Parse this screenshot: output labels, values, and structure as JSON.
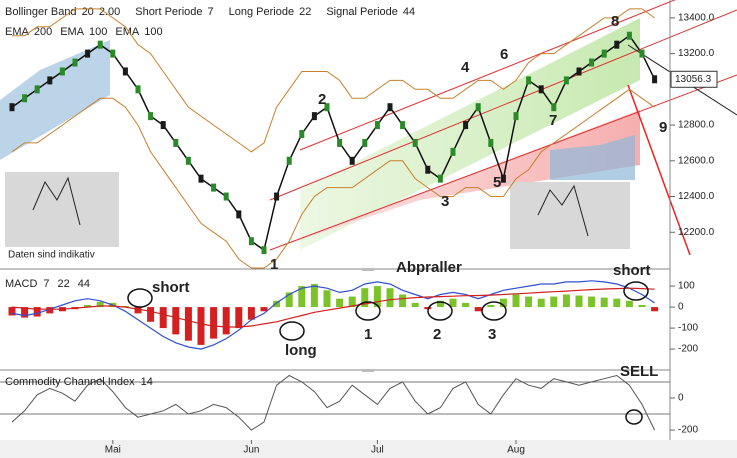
{
  "header": {
    "items": [
      {
        "name": "Bollinger Band",
        "params": [
          20,
          {
            "value": 2,
            "label": "2.00"
          }
        ]
      },
      {
        "name": "Short Periode",
        "params": [
          7
        ]
      },
      {
        "name": "Long Periode",
        "params": [
          22
        ]
      },
      {
        "name": "Signal Periode",
        "params": [
          44
        ]
      }
    ],
    "ema": [
      {
        "name": "EMA",
        "params": [
          200
        ]
      },
      {
        "name": "EMA",
        "params": [
          100
        ]
      },
      {
        "name": "EMA",
        "params": [
          100
        ]
      }
    ]
  },
  "chart_data": [
    {
      "type": "price",
      "categories": [
        null,
        null,
        null,
        null,
        null,
        null,
        null,
        null,
        "Mai",
        null,
        null,
        null,
        null,
        null,
        null,
        null,
        null,
        null,
        null,
        "Jun",
        null,
        null,
        null,
        null,
        null,
        null,
        null,
        null,
        null,
        "Jul",
        null,
        null,
        null,
        null,
        null,
        null,
        null,
        null,
        null,
        null,
        "Aug",
        null,
        null,
        null,
        null,
        null,
        null,
        null,
        null,
        null,
        null,
        null
      ],
      "values": [
        12900,
        12950,
        13000,
        13050,
        13100,
        13150,
        13200,
        13250,
        13200,
        13100,
        13000,
        12850,
        12800,
        12700,
        12600,
        12500,
        12450,
        12400,
        12300,
        12150,
        12100,
        12400,
        12600,
        12750,
        12850,
        12900,
        12700,
        12600,
        12700,
        12800,
        12900,
        12800,
        12700,
        12550,
        12500,
        12650,
        12800,
        12900,
        12700,
        12500,
        12850,
        13050,
        13000,
        12900,
        13050,
        13100,
        13150,
        13200,
        13250,
        13300,
        13200,
        13056.3
      ],
      "bb_upper": [
        13300,
        13300,
        13350,
        13350,
        13400,
        13450,
        13450,
        13450,
        13400,
        13350,
        13250,
        13200,
        13100,
        13000,
        12900,
        12850,
        12800,
        12750,
        12700,
        12650,
        12700,
        12900,
        13000,
        13100,
        13100,
        13100,
        13050,
        12950,
        12950,
        13000,
        13050,
        13050,
        13000,
        13000,
        12950,
        12950,
        13000,
        13050,
        13050,
        13000,
        13050,
        13150,
        13200,
        13200,
        13250,
        13300,
        13350,
        13400,
        13400,
        13450,
        13450,
        13400
      ],
      "bb_lower": [
        12650,
        12700,
        12700,
        12750,
        12800,
        12850,
        12900,
        12950,
        12950,
        12900,
        12800,
        12650,
        12550,
        12450,
        12350,
        12250,
        12200,
        12150,
        12050,
        12000,
        12000,
        12050,
        12150,
        12300,
        12400,
        12450,
        12450,
        12450,
        12500,
        12550,
        12600,
        12600,
        12500,
        12450,
        12400,
        12400,
        12450,
        12450,
        12400,
        12400,
        12500,
        12550,
        12650,
        12700,
        12750,
        12800,
        12850,
        12900,
        12950,
        13000,
        12950,
        12900
      ],
      "color": "#111111",
      "band_color": "#c8802c",
      "ylim": [
        12000,
        13500
      ],
      "yticks": [
        {
          "value": 13400,
          "label": "13400.0"
        },
        {
          "value": 13200,
          "label": "13200.0"
        },
        {
          "value": 12800,
          "label": "12800.0"
        },
        {
          "value": 12600,
          "label": "12600.0"
        },
        {
          "value": 12400,
          "label": "12400.0"
        },
        {
          "value": 12200,
          "label": "12200.0"
        }
      ],
      "annotations": [
        "2",
        "4",
        "6",
        "8",
        "7",
        "1",
        "3",
        "5",
        "9",
        "Daten sind indikativ"
      ]
    },
    {
      "type": "macd",
      "title": "MACD",
      "params": [
        7,
        22,
        44
      ],
      "histogram": [
        -40,
        -50,
        -45,
        -30,
        -20,
        -10,
        10,
        25,
        20,
        5,
        -30,
        -70,
        -100,
        -130,
        -160,
        -180,
        -150,
        -130,
        -100,
        -60,
        -20,
        30,
        70,
        100,
        110,
        80,
        40,
        50,
        90,
        100,
        90,
        60,
        20,
        -10,
        30,
        40,
        20,
        -20,
        10,
        40,
        60,
        50,
        40,
        50,
        60,
        55,
        50,
        45,
        40,
        30,
        10,
        -20
      ],
      "macd": [
        -30,
        -40,
        -30,
        -10,
        10,
        30,
        40,
        30,
        10,
        -20,
        -60,
        -100,
        -140,
        -170,
        -190,
        -200,
        -180,
        -150,
        -110,
        -60,
        -30,
        20,
        60,
        90,
        100,
        90,
        70,
        80,
        110,
        120,
        110,
        80,
        60,
        40,
        60,
        70,
        60,
        40,
        60,
        80,
        90,
        100,
        110,
        110,
        120,
        120,
        125,
        120,
        110,
        90,
        60,
        20
      ],
      "signal": [
        0,
        -5,
        -10,
        -10,
        -10,
        -5,
        0,
        5,
        5,
        0,
        -10,
        -20,
        -35,
        -50,
        -65,
        -80,
        -90,
        -95,
        -95,
        -90,
        -80,
        -70,
        -55,
        -40,
        -25,
        -15,
        -5,
        5,
        15,
        25,
        35,
        40,
        45,
        48,
        50,
        52,
        54,
        55,
        57,
        60,
        63,
        66,
        70,
        73,
        76,
        80,
        83,
        86,
        88,
        90,
        88,
        85
      ],
      "ylim": [
        -290,
        167
      ],
      "yticks": [
        100,
        0,
        -100,
        -200
      ],
      "annotations": [
        "short",
        "long",
        "Abpraller",
        "1",
        "2",
        "3",
        "short"
      ]
    },
    {
      "type": "cci",
      "title": "Commodity Channel Index",
      "params": [
        14
      ],
      "values": [
        -150,
        -80,
        20,
        60,
        30,
        -20,
        80,
        120,
        40,
        -60,
        -120,
        -100,
        -80,
        -40,
        -100,
        -80,
        -40,
        -60,
        -120,
        -200,
        -150,
        80,
        140,
        100,
        40,
        -60,
        -20,
        80,
        20,
        -40,
        60,
        100,
        -20,
        -100,
        -60,
        60,
        100,
        -40,
        -100,
        20,
        120,
        80,
        60,
        120,
        100,
        80,
        100,
        120,
        140,
        80,
        -40,
        -200
      ],
      "levels": [
        100,
        -100
      ],
      "ylim": [
        -262,
        162
      ],
      "yticks": [
        0,
        -200
      ],
      "annotations": [
        "SELL"
      ]
    }
  ]
}
